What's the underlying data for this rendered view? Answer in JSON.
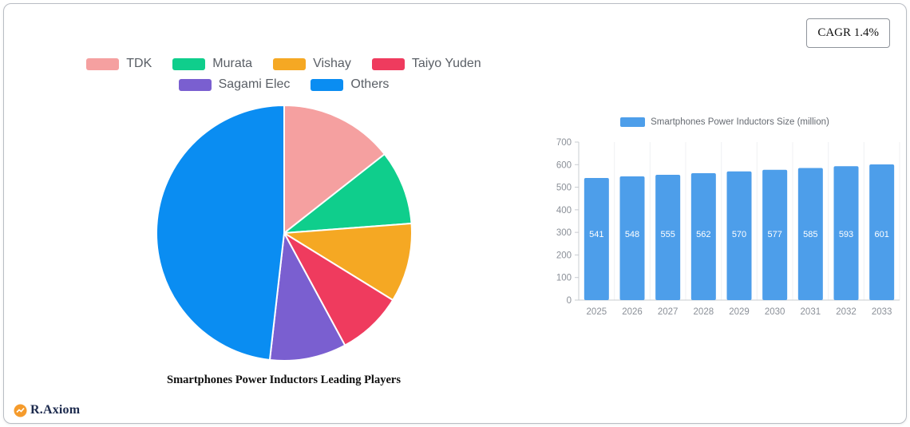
{
  "cagr": {
    "label": "CAGR 1.4%"
  },
  "logo": {
    "text": "R.Axiom"
  },
  "chart_data": [
    {
      "type": "pie",
      "title": "Smartphones Power Inductors Leading Players",
      "legend_position": "top",
      "labels": [
        "TDK",
        "Murata",
        "Vishay",
        "Taiyo Yuden",
        "Sagami Elec",
        "Others"
      ],
      "values": [
        14.4,
        9.4,
        10.0,
        8.3,
        9.7,
        48.2
      ],
      "colors": [
        "#F5A0A0",
        "#0FCE8C",
        "#F5A823",
        "#EF3B5E",
        "#7A5FD0",
        "#0A8DF2"
      ]
    },
    {
      "type": "bar",
      "legend": "Smartphones Power Inductors Size (million)",
      "categories": [
        "2025",
        "2026",
        "2027",
        "2028",
        "2029",
        "2030",
        "2031",
        "2032",
        "2033"
      ],
      "values": [
        541,
        548,
        555,
        562,
        570,
        577,
        585,
        593,
        601
      ],
      "bar_color": "#4D9EEA",
      "value_label_color": "#ffffff",
      "ylim": [
        0,
        700
      ],
      "yticks": [
        0,
        100,
        200,
        300,
        400,
        500,
        600,
        700
      ],
      "grid": "faint-vertical",
      "legend_position": "top"
    }
  ]
}
